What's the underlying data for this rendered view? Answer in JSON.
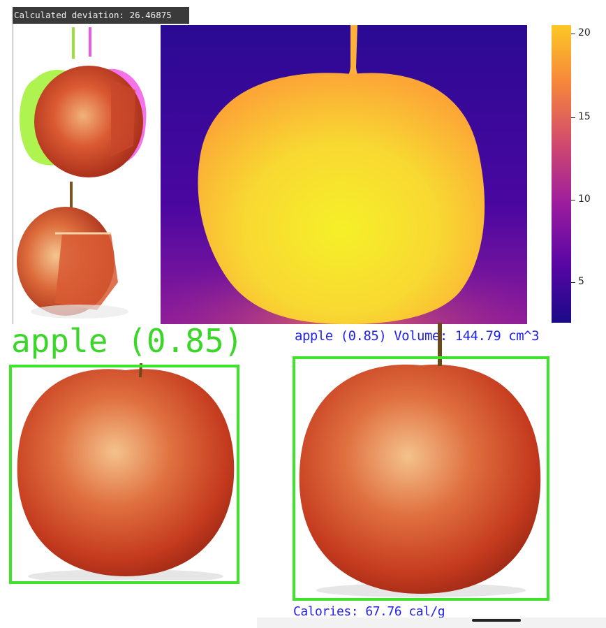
{
  "banner": {
    "deviation_text": "Calculated deviation: 26.46875"
  },
  "depth_view": {
    "colorbar_ticks": [
      "20",
      "15",
      "10",
      "5"
    ],
    "colormap": "plasma",
    "colors": {
      "low": "#2a0a93",
      "mid": "#d34a6b",
      "high": "#f9e632",
      "top": "#fcc02a"
    }
  },
  "detections": {
    "left": {
      "label": "apple (0.85)",
      "box_color": "#3ee42a"
    },
    "right": {
      "label": "apple (0.85) Volume: 144.79 cm^3",
      "calories": "Calories: 67.76 cal/g",
      "text_color": "#2222ee"
    }
  }
}
